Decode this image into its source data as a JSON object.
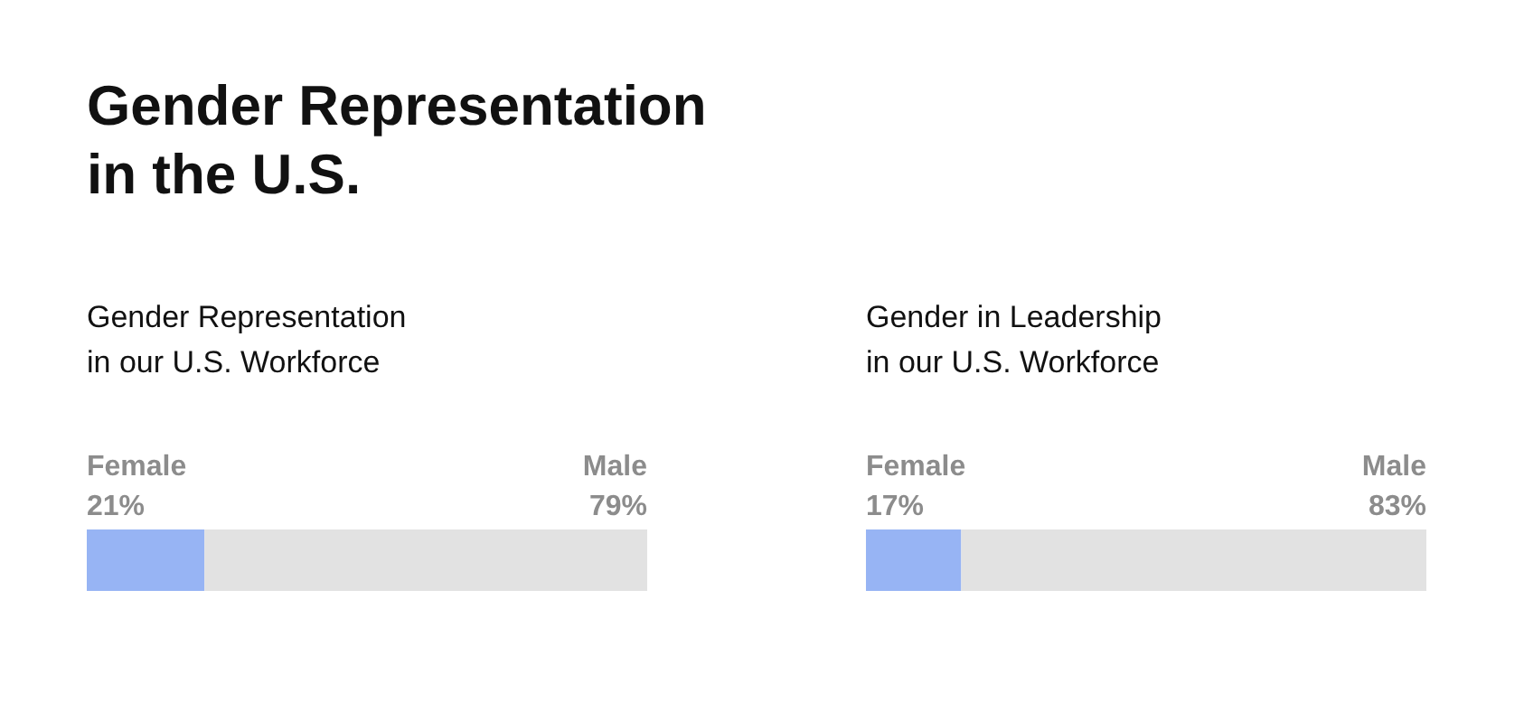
{
  "chart_data": [
    {
      "type": "bar",
      "title": "Gender Representation in the U.S.",
      "subtitle": "Gender Representation in our U.S. Workforce",
      "orientation": "horizontal",
      "stacked": true,
      "categories": [
        null
      ],
      "xlim": [
        0,
        100
      ],
      "tick_labels": false,
      "series": [
        {
          "name": "Female",
          "color": "#97b4f4",
          "values": [
            21
          ],
          "value_labels": [
            "21%"
          ]
        },
        {
          "name": "Male",
          "color": "#e2e2e2",
          "values": [
            79
          ],
          "value_labels": [
            "79%"
          ]
        }
      ]
    },
    {
      "type": "bar",
      "subtitle": "Gender in Leadership in our U.S. Workforce",
      "orientation": "horizontal",
      "stacked": true,
      "categories": [
        null
      ],
      "xlim": [
        0,
        100
      ],
      "tick_labels": false,
      "series": [
        {
          "name": "Female",
          "color": "#97b4f4",
          "values": [
            17
          ],
          "value_labels": [
            "17%"
          ]
        },
        {
          "name": "Male",
          "color": "#e2e2e2",
          "values": [
            83
          ],
          "value_labels": [
            "83%"
          ]
        }
      ]
    }
  ]
}
